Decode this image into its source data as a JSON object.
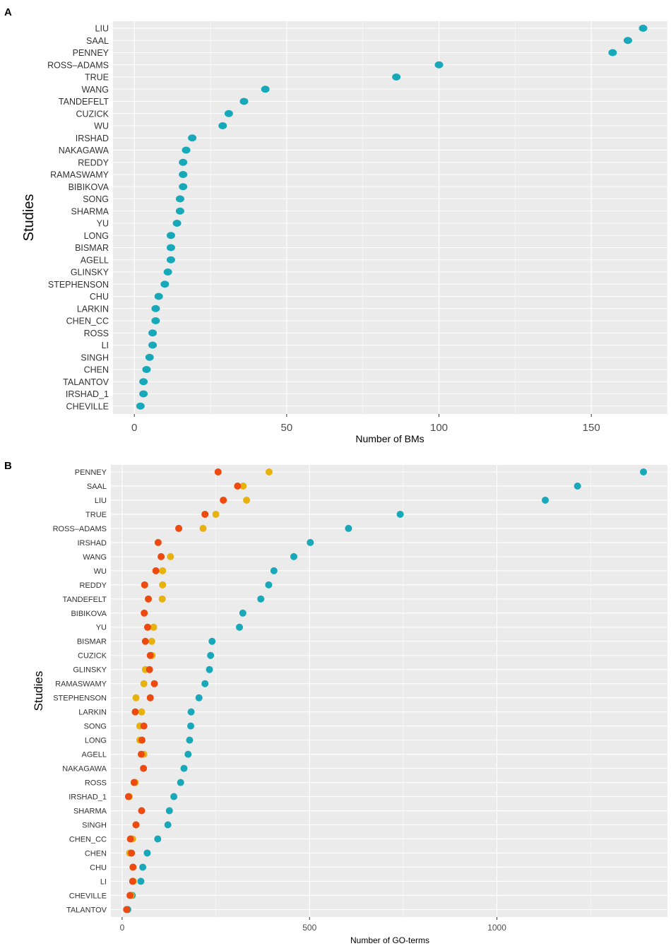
{
  "colors": {
    "panel_bg": "#EBEBEB",
    "grid_major": "#FFFFFF",
    "teal": "#17A9BA",
    "orange": "#E8B20E",
    "red": "#EE4A0F",
    "tick_text": "#4D4D4D"
  },
  "chart_data": [
    {
      "panel": "A",
      "type": "scatter",
      "ylabel": "Studies",
      "xlabel": "Number of BMs",
      "xlim": [
        -7,
        175
      ],
      "xticks": [
        0,
        50,
        100,
        150
      ],
      "categories": [
        "LIU",
        "SAAL",
        "PENNEY",
        "ROSS–ADAMS",
        "TRUE",
        "WANG",
        "TANDEFELT",
        "CUZICK",
        "WU",
        "IRSHAD",
        "NAKAGAWA",
        "REDDY",
        "RAMASWAMY",
        "BIBIKOVA",
        "SONG",
        "SHARMA",
        "YU",
        "LONG",
        "BISMAR",
        "AGELL",
        "GLINSKY",
        "STEPHENSON",
        "CHU",
        "LARKIN",
        "CHEN_CC",
        "ROSS",
        "LI",
        "SINGH",
        "CHEN",
        "TALANTOV",
        "IRSHAD_1",
        "CHEVILLE"
      ],
      "series": [
        {
          "name": "BMs",
          "color": "#17A9BA",
          "values": [
            167,
            162,
            157,
            100,
            86,
            43,
            36,
            31,
            29,
            19,
            17,
            16,
            16,
            16,
            15,
            15,
            14,
            12,
            12,
            12,
            11,
            10,
            8,
            7,
            7,
            6,
            6,
            5,
            4,
            3,
            3,
            2
          ]
        }
      ]
    },
    {
      "panel": "B",
      "type": "scatter",
      "ylabel": "Studies",
      "xlabel": "Number of GO-terms",
      "xlim": [
        -30,
        1455
      ],
      "xticks": [
        0,
        500,
        1000
      ],
      "categories": [
        "PENNEY",
        "SAAL",
        "LIU",
        "TRUE",
        "ROSS–ADAMS",
        "IRSHAD",
        "WANG",
        "WU",
        "REDDY",
        "TANDEFELT",
        "BIBIKOVA",
        "YU",
        "BISMAR",
        "CUZICK",
        "GLINSKY",
        "RAMASWAMY",
        "STEPHENSON",
        "LARKIN",
        "SONG",
        "LONG",
        "AGELL",
        "NAKAGAWA",
        "ROSS",
        "IRSHAD_1",
        "SHARMA",
        "SINGH",
        "CHEN_CC",
        "CHEN",
        "CHU",
        "LI",
        "CHEVILLE",
        "TALANTOV"
      ],
      "series": [
        {
          "name": "teal",
          "color": "#17A9BA",
          "values": [
            1391,
            1215,
            1129,
            742,
            604,
            502,
            458,
            405,
            391,
            370,
            322,
            313,
            240,
            236,
            233,
            221,
            205,
            184,
            183,
            180,
            176,
            165,
            156,
            138,
            126,
            122,
            95,
            67,
            55,
            50,
            27,
            15
          ]
        },
        {
          "name": "orange",
          "color": "#E8B20E",
          "values": [
            392,
            323,
            332,
            250,
            216,
            null,
            129,
            108,
            108,
            107,
            null,
            84,
            79,
            80,
            62,
            58,
            37,
            52,
            47,
            47,
            58,
            null,
            35,
            19,
            null,
            37,
            28,
            20,
            29,
            30,
            24,
            null
          ]
        },
        {
          "name": "red",
          "color": "#EE4A0F",
          "values": [
            256,
            308,
            270,
            221,
            151,
            96,
            104,
            90,
            60,
            70,
            59,
            68,
            62,
            75,
            73,
            86,
            75,
            35,
            58,
            53,
            51,
            57,
            32,
            17,
            52,
            37,
            22,
            25,
            29,
            28,
            21,
            12
          ]
        }
      ]
    }
  ]
}
